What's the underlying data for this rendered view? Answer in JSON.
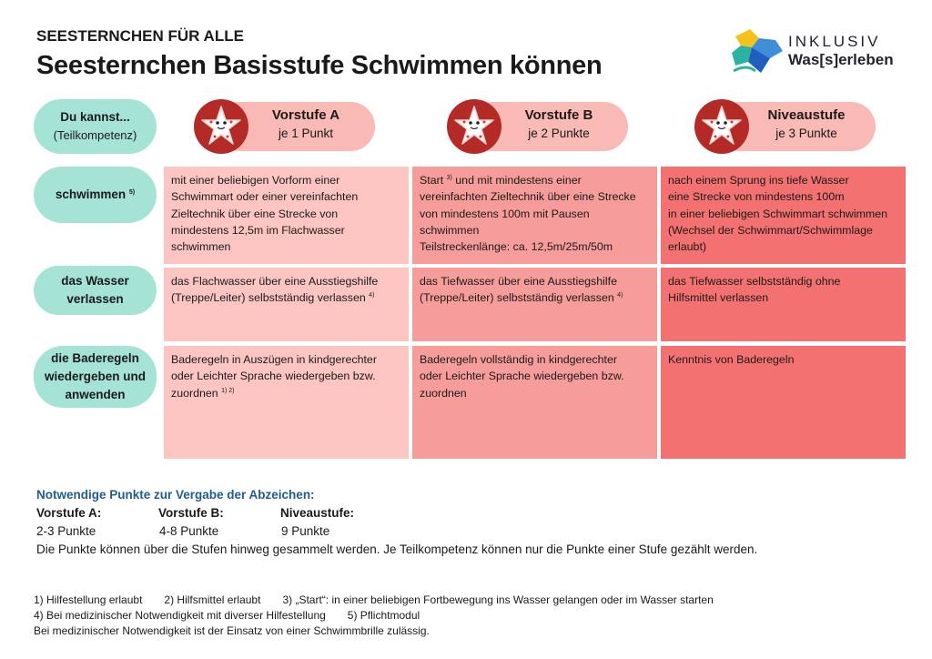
{
  "header": {
    "kicker": "SEESTERNCHEN FÜR ALLE",
    "title": "Seesternchen Basisstufe Schwimmen können"
  },
  "logo": {
    "line1": "INKLUSIV",
    "line2": "Was[s]erleben"
  },
  "table": {
    "corner": {
      "title": "Du kannst...",
      "subtitle": "(Teilkompetenz)"
    },
    "levels": [
      {
        "name": "Vorstufe A",
        "points": "je 1 Punkt"
      },
      {
        "name": "Vorstufe B",
        "points": "je 2 Punkte"
      },
      {
        "name": "Niveaustufe",
        "points": "je 3 Punkte"
      }
    ],
    "rows": [
      {
        "label": [
          {
            "t": "schwimmen "
          },
          {
            "sup": "5)"
          }
        ],
        "cells": [
          [
            {
              "t": "mit einer beliebigen Vorform einer\nSchwimmart oder einer vereinfachten\nZieltechnik über eine Strecke von\nmindestens 12,5m im Flachwasser\nschwimmen"
            }
          ],
          [
            {
              "t": "Start "
            },
            {
              "sup": "3)"
            },
            {
              "t": " und mit mindestens einer\nvereinfachten Zieltechnik über eine Strecke\nvon mindestens 100m mit Pausen\nschwimmen\nTeilstreckenlänge: ca. 12,5m/25m/50m"
            }
          ],
          [
            {
              "t": "nach einem Sprung ins tiefe Wasser\neine Strecke von mindestens 100m\nin einer beliebigen Schwimmart schwimmen\n(Wechsel der Schwimmart/Schwimmlage\nerlaubt)"
            }
          ]
        ]
      },
      {
        "label": [
          {
            "t": "das Wasser\nverlassen"
          }
        ],
        "cells": [
          [
            {
              "t": "das Flachwasser über eine Ausstiegshilfe\n(Treppe/Leiter) selbstständig verlassen "
            },
            {
              "sup": "4)"
            }
          ],
          [
            {
              "t": "das Tiefwasser über eine Ausstiegshilfe\n(Treppe/Leiter) selbstständig verlassen "
            },
            {
              "sup": "4)"
            }
          ],
          [
            {
              "t": "das Tiefwasser selbstständig ohne\nHilfsmittel verlassen"
            }
          ]
        ]
      },
      {
        "label": [
          {
            "t": "die Baderegeln\nwiedergeben und\nanwenden"
          }
        ],
        "cells": [
          [
            {
              "t": "Baderegeln in Auszügen in kindgerechter\noder Leichter Sprache wiedergeben bzw.\nzuordnen "
            },
            {
              "sup": "1) 2)"
            }
          ],
          [
            {
              "t": "Baderegeln vollständig in kindgerechter\noder Leichter Sprache wiedergeben bzw.\nzuordnen"
            }
          ],
          [
            {
              "t": "Kenntnis von Baderegeln"
            }
          ]
        ]
      }
    ]
  },
  "points": {
    "heading": "Notwendige Punkte zur Vergabe der Abzeichen:",
    "levels": [
      {
        "name": "Vorstufe A:",
        "points": "2-3 Punkte"
      },
      {
        "name": "Vorstufe B:",
        "points": "4-8 Punkte"
      },
      {
        "name": "Niveaustufe:",
        "points": "9 Punkte"
      }
    ],
    "note": "Die Punkte können über die Stufen hinweg gesammelt werden. Je Teilkompetenz können nur die Punkte einer Stufe gezählt werden."
  },
  "footnotes": [
    [
      "1) Hilfestellung erlaubt",
      "2) Hilfsmittel erlaubt",
      "3) „Start“: in einer beliebigen Fortbewegung ins Wasser gelangen oder im Wasser starten"
    ],
    [
      "4) Bei medizinischer Notwendigkeit mit diverser Hilfestellung",
      "5) Pflichtmodul"
    ],
    [
      "Bei medizinischer Notwendigkeit ist der Einsatz von einer Schwimmbrille zulässig."
    ]
  ]
}
